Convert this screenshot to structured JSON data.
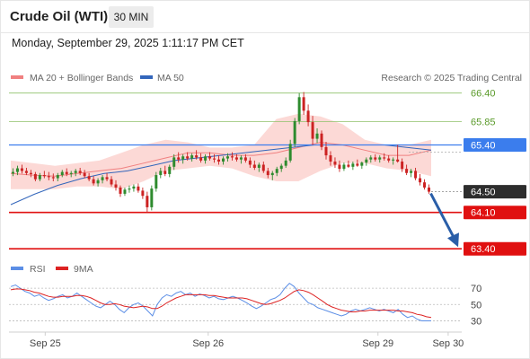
{
  "header": {
    "title": "Crude Oil (WTI)",
    "timeframe": "30 MIN",
    "datetime": "Monday, September 29, 2025 1:11:17 PM CET"
  },
  "legend": {
    "bollinger_label": "MA 20 + Bollinger Bands",
    "ma50_label": "MA 50",
    "credit": "Research © 2025 Trading Central",
    "rsi_label": "RSI",
    "rsi_ma_label": "9MA"
  },
  "colors": {
    "candle_up": "#2e8b2e",
    "candle_down": "#cc2222",
    "ma20": "#f08080",
    "band_fill": "#fbd0cc",
    "ma50": "#3366bb",
    "resistance": "#8fc16a",
    "pivot": "#3b7ded",
    "support": "#e01010",
    "last_price": "#2d2d2d",
    "arrow": "#2a5ea8",
    "rsi": "#5b8ee6",
    "rsi_ma": "#dd2222"
  },
  "chart_data": [
    {
      "type": "candlestick",
      "title": "Crude Oil (WTI)",
      "timeframe": "30 MIN",
      "x_labels": [
        "Sep 25",
        "Sep 26",
        "Sep 29",
        "Sep 30"
      ],
      "ylim": [
        63.3,
        66.55
      ],
      "levels": {
        "resistance": [
          66.4,
          65.85
        ],
        "pivot": 65.4,
        "last": 64.5,
        "support": [
          64.1,
          63.4
        ]
      },
      "level_labels": [
        "66.40",
        "65.85",
        "65.40",
        "64.50",
        "64.10",
        "63.40"
      ],
      "series": [
        {
          "name": "MA 20 + Bollinger Bands",
          "kind": "band",
          "mid": [
            64.85,
            64.82,
            64.8,
            64.85,
            64.9,
            64.95,
            65.05,
            65.15,
            65.25,
            65.25,
            65.2,
            65.2,
            65.25,
            65.35,
            65.45,
            65.4,
            65.3,
            65.2,
            65.2,
            65.3
          ],
          "upper": [
            65.1,
            65.05,
            65.0,
            65.05,
            65.1,
            65.25,
            65.4,
            65.5,
            65.45,
            65.35,
            65.35,
            65.4,
            65.9,
            66.0,
            65.95,
            65.8,
            65.5,
            65.4,
            65.4,
            65.5
          ],
          "lower": [
            64.55,
            64.55,
            64.55,
            64.6,
            64.6,
            64.55,
            64.7,
            64.9,
            64.95,
            65.0,
            64.95,
            64.8,
            64.7,
            64.7,
            64.9,
            65.05,
            65.05,
            64.95,
            64.9,
            64.8
          ]
        },
        {
          "name": "MA 50",
          "kind": "line",
          "values": [
            64.25,
            64.45,
            64.62,
            64.75,
            64.85,
            64.9,
            65.0,
            65.1,
            65.15,
            65.2,
            65.25,
            65.3,
            65.35,
            65.4,
            65.4,
            65.4,
            65.4,
            65.35,
            65.3
          ]
        }
      ],
      "candles": [
        [
          64.85,
          64.95,
          64.8,
          64.88
        ],
        [
          64.88,
          65.0,
          64.82,
          64.95
        ],
        [
          64.95,
          65.02,
          64.85,
          64.9
        ],
        [
          64.9,
          64.96,
          64.82,
          64.86
        ],
        [
          64.86,
          64.92,
          64.78,
          64.84
        ],
        [
          64.84,
          64.88,
          64.7,
          64.74
        ],
        [
          64.74,
          64.86,
          64.7,
          64.82
        ],
        [
          64.82,
          64.9,
          64.76,
          64.8
        ],
        [
          64.8,
          64.88,
          64.72,
          64.78
        ],
        [
          64.78,
          64.85,
          64.7,
          64.76
        ],
        [
          64.76,
          64.86,
          64.7,
          64.82
        ],
        [
          64.82,
          64.92,
          64.78,
          64.88
        ],
        [
          64.88,
          64.95,
          64.8,
          64.84
        ],
        [
          64.84,
          64.9,
          64.78,
          64.86
        ],
        [
          64.86,
          64.94,
          64.8,
          64.9
        ],
        [
          64.9,
          64.96,
          64.82,
          64.86
        ],
        [
          64.86,
          64.92,
          64.76,
          64.8
        ],
        [
          64.8,
          64.86,
          64.7,
          64.74
        ],
        [
          64.74,
          64.8,
          64.62,
          64.66
        ],
        [
          64.66,
          64.76,
          64.6,
          64.72
        ],
        [
          64.72,
          64.82,
          64.66,
          64.78
        ],
        [
          64.78,
          64.86,
          64.7,
          64.74
        ],
        [
          64.74,
          64.8,
          64.6,
          64.64
        ],
        [
          64.64,
          64.72,
          64.52,
          64.58
        ],
        [
          64.58,
          64.62,
          64.4,
          64.46
        ],
        [
          64.46,
          64.58,
          64.42,
          64.54
        ],
        [
          64.54,
          64.62,
          64.48,
          64.56
        ],
        [
          64.56,
          64.64,
          64.5,
          64.6
        ],
        [
          64.6,
          64.66,
          64.48,
          64.52
        ],
        [
          64.52,
          64.58,
          64.36,
          64.42
        ],
        [
          64.42,
          64.5,
          64.1,
          64.2
        ],
        [
          64.2,
          64.62,
          64.14,
          64.56
        ],
        [
          64.56,
          64.88,
          64.5,
          64.82
        ],
        [
          64.82,
          64.96,
          64.76,
          64.9
        ],
        [
          64.9,
          65.0,
          64.8,
          64.84
        ],
        [
          64.84,
          65.02,
          64.78,
          64.98
        ],
        [
          64.98,
          65.22,
          64.92,
          65.16
        ],
        [
          65.16,
          65.26,
          65.06,
          65.12
        ],
        [
          65.12,
          65.22,
          65.04,
          65.18
        ],
        [
          65.18,
          65.26,
          65.1,
          65.14
        ],
        [
          65.14,
          65.24,
          65.08,
          65.2
        ],
        [
          65.2,
          65.3,
          65.12,
          65.16
        ],
        [
          65.16,
          65.24,
          65.06,
          65.1
        ],
        [
          65.1,
          65.22,
          65.04,
          65.18
        ],
        [
          65.18,
          65.26,
          65.1,
          65.14
        ],
        [
          65.14,
          65.22,
          65.06,
          65.12
        ],
        [
          65.12,
          65.2,
          65.02,
          65.08
        ],
        [
          65.08,
          65.18,
          65.02,
          65.14
        ],
        [
          65.14,
          65.24,
          65.08,
          65.18
        ],
        [
          65.18,
          65.26,
          65.1,
          65.16
        ],
        [
          65.16,
          65.22,
          65.08,
          65.12
        ],
        [
          65.12,
          65.2,
          65.04,
          65.16
        ],
        [
          65.16,
          65.22,
          65.06,
          65.1
        ],
        [
          65.1,
          65.16,
          64.96,
          65.02
        ],
        [
          65.02,
          65.1,
          64.92,
          64.96
        ],
        [
          64.96,
          65.06,
          64.88,
          65.02
        ],
        [
          65.02,
          65.08,
          64.86,
          64.9
        ],
        [
          64.9,
          64.96,
          64.76,
          64.82
        ],
        [
          64.82,
          64.9,
          64.72,
          64.86
        ],
        [
          64.86,
          64.98,
          64.8,
          64.94
        ],
        [
          64.94,
          65.04,
          64.88,
          65.0
        ],
        [
          65.0,
          65.16,
          64.96,
          65.1
        ],
        [
          65.1,
          65.5,
          65.06,
          65.42
        ],
        [
          65.42,
          65.92,
          65.36,
          65.86
        ],
        [
          65.86,
          66.4,
          65.8,
          66.32
        ],
        [
          66.32,
          66.42,
          65.98,
          66.06
        ],
        [
          66.06,
          66.18,
          65.76,
          65.84
        ],
        [
          65.84,
          65.96,
          65.4,
          65.52
        ],
        [
          65.52,
          65.72,
          65.44,
          65.62
        ],
        [
          65.62,
          65.68,
          65.3,
          65.36
        ],
        [
          65.36,
          65.46,
          65.12,
          65.2
        ],
        [
          65.2,
          65.28,
          65.0,
          65.08
        ],
        [
          65.08,
          65.16,
          64.96,
          65.02
        ],
        [
          65.02,
          65.1,
          64.88,
          64.94
        ],
        [
          64.94,
          65.06,
          64.9,
          65.02
        ],
        [
          65.02,
          65.1,
          64.96,
          64.98
        ],
        [
          64.98,
          65.08,
          64.92,
          65.04
        ],
        [
          65.04,
          65.12,
          64.98,
          65.0
        ],
        [
          65.0,
          65.08,
          64.94,
          65.06
        ],
        [
          65.06,
          65.16,
          65.0,
          65.12
        ],
        [
          65.12,
          65.2,
          65.06,
          65.16
        ],
        [
          65.16,
          65.22,
          65.08,
          65.12
        ],
        [
          65.12,
          65.2,
          65.06,
          65.16
        ],
        [
          65.16,
          65.24,
          65.1,
          65.14
        ],
        [
          65.14,
          65.2,
          65.06,
          65.1
        ],
        [
          65.1,
          65.16,
          65.02,
          65.12
        ],
        [
          65.12,
          65.4,
          65.06,
          65.08
        ],
        [
          65.08,
          65.14,
          64.88,
          64.94
        ],
        [
          64.94,
          65.02,
          64.82,
          64.86
        ],
        [
          64.86,
          64.94,
          64.78,
          64.9
        ],
        [
          64.9,
          64.96,
          64.72,
          64.76
        ],
        [
          64.76,
          64.84,
          64.62,
          64.68
        ],
        [
          64.68,
          64.74,
          64.54,
          64.58
        ],
        [
          64.58,
          64.64,
          64.46,
          64.5
        ]
      ]
    },
    {
      "type": "line",
      "title": "RSI",
      "ylim": [
        25,
        80
      ],
      "y_ticks": [
        70,
        50,
        30
      ],
      "series": [
        {
          "name": "RSI",
          "values": [
            72,
            74,
            70,
            66,
            64,
            60,
            62,
            58,
            55,
            57,
            60,
            62,
            58,
            60,
            64,
            60,
            56,
            52,
            48,
            46,
            50,
            54,
            50,
            44,
            40,
            46,
            50,
            52,
            48,
            42,
            36,
            50,
            58,
            62,
            60,
            64,
            66,
            62,
            64,
            60,
            63,
            61,
            58,
            60,
            57,
            56,
            58,
            60,
            58,
            55,
            52,
            48,
            45,
            48,
            52,
            56,
            58,
            62,
            70,
            76,
            72,
            64,
            58,
            52,
            50,
            46,
            44,
            42,
            40,
            38,
            36,
            38,
            42,
            44,
            42,
            44,
            46,
            44,
            42,
            44,
            42,
            40,
            44,
            38,
            34,
            36,
            32,
            30,
            30,
            30
          ]
        },
        {
          "name": "9MA",
          "values": [
            68,
            69,
            69,
            68,
            67,
            65,
            64,
            62,
            60,
            59,
            59,
            60,
            60,
            60,
            61,
            61,
            60,
            58,
            55,
            52,
            50,
            50,
            51,
            50,
            48,
            47,
            46,
            47,
            48,
            47,
            45,
            45,
            48,
            52,
            55,
            58,
            60,
            62,
            62,
            62,
            62,
            62,
            61,
            61,
            60,
            59,
            58,
            58,
            58,
            58,
            57,
            55,
            53,
            51,
            50,
            51,
            53,
            55,
            58,
            62,
            66,
            68,
            67,
            65,
            62,
            58,
            54,
            50,
            47,
            45,
            43,
            42,
            41,
            41,
            42,
            42,
            43,
            43,
            43,
            43,
            43,
            43,
            42,
            42,
            41,
            40,
            38,
            37,
            35,
            34
          ]
        }
      ]
    }
  ]
}
